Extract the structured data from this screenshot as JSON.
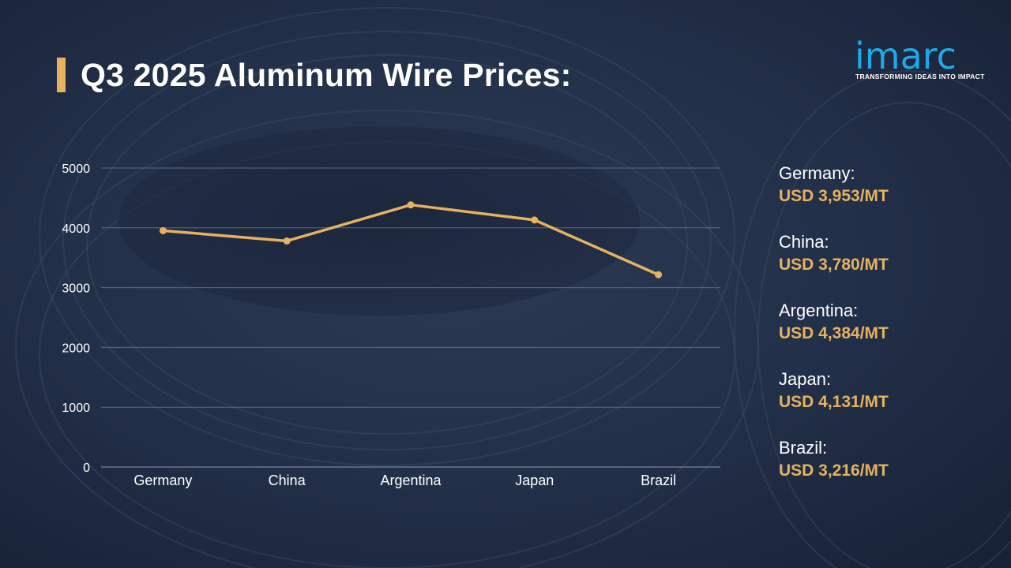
{
  "title": "Q3 2025 Aluminum Wire Prices:",
  "logo": {
    "word": "imarc",
    "tagline": "TRANSFORMING IDEAS INTO IMPACT"
  },
  "colors": {
    "accent": "#e6b25e",
    "brand": "#1fa9e8",
    "background": "#1e2a40"
  },
  "chart_data": {
    "type": "line",
    "categories": [
      "Germany",
      "China",
      "Argentina",
      "Japan",
      "Brazil"
    ],
    "series": [
      {
        "values": [
          3953,
          3780,
          4384,
          4131,
          3216
        ]
      }
    ],
    "ylim": [
      0,
      5000
    ],
    "yticks": [
      "0",
      "1000",
      "2000",
      "3000",
      "4000",
      "5000"
    ],
    "grid": true
  },
  "legend": [
    {
      "country": "Germany:",
      "price": "USD 3,953/MT"
    },
    {
      "country": "China:",
      "price": "USD 3,780/MT"
    },
    {
      "country": "Argentina:",
      "price": "USD 4,384/MT"
    },
    {
      "country": "Japan:",
      "price": "USD 4,131/MT"
    },
    {
      "country": "Brazil:",
      "price": "USD 3,216/MT"
    }
  ]
}
